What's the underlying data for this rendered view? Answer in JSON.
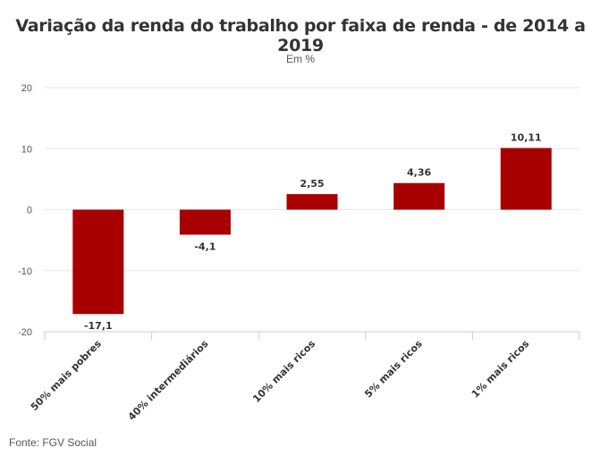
{
  "header": {
    "title": "Variação da renda do trabalho por faixa de renda - de 2014 a 2019",
    "subtitle": "Em %"
  },
  "footer": {
    "source": "Fonte: FGV Social"
  },
  "colors": {
    "bar": "#a80000",
    "grid": "#e6e6e6",
    "axis": "#cccccc"
  },
  "chart_data": {
    "type": "bar",
    "title": "Variação da renda do trabalho por faixa de renda - de 2014 a 2019",
    "subtitle": "Em %",
    "categories": [
      "50% mais pobres",
      "40% intermediários",
      "10% mais ricos",
      "5% mais ricos",
      "1% mais ricos"
    ],
    "values": [
      -17.1,
      -4.1,
      2.55,
      4.36,
      10.11
    ],
    "value_labels": [
      "-17,1",
      "-4,1",
      "2,55",
      "4,36",
      "10,11"
    ],
    "ylim": [
      -20,
      20
    ],
    "yticks": [
      20,
      10,
      0,
      -10,
      -20
    ],
    "xlabel": "",
    "ylabel": "",
    "grid": true,
    "legend": "none"
  }
}
